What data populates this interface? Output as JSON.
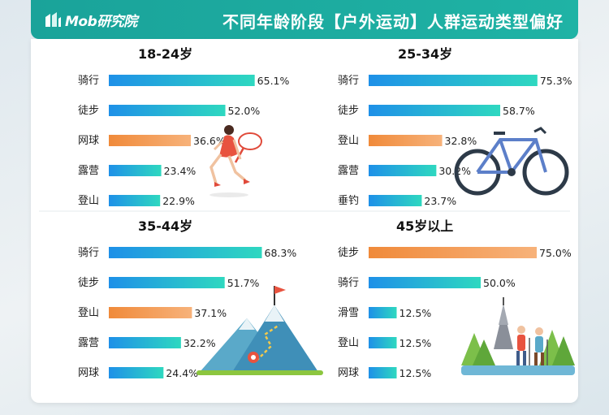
{
  "header": {
    "logo_text": "Mob研究院",
    "title": "不同年龄阶段【户外运动】人群运动类型偏好"
  },
  "colors": {
    "header": "#1aa39a",
    "bar_gradient_start": "#1e90e8",
    "bar_gradient_end": "#2ed8c0",
    "bar_highlight_start": "#f08a3a",
    "bar_highlight_end": "#f7b27a"
  },
  "illustrations": [
    "tennis-player-icon",
    "bicycle-icon",
    "mountain-flag-icon",
    "hikers-temple-icon"
  ],
  "chart_data": [
    {
      "type": "bar",
      "orientation": "horizontal",
      "title": "18-24岁",
      "categories": [
        "骑行",
        "徒步",
        "网球",
        "露营",
        "登山"
      ],
      "values": [
        65.1,
        52.0,
        36.6,
        23.4,
        22.9
      ],
      "value_labels": [
        "65.1%",
        "52.0%",
        "36.6%",
        "23.4%",
        "22.9%"
      ],
      "highlight": [
        "网球"
      ],
      "unit": "%"
    },
    {
      "type": "bar",
      "orientation": "horizontal",
      "title": "25-34岁",
      "categories": [
        "骑行",
        "徒步",
        "登山",
        "露营",
        "垂钓"
      ],
      "values": [
        75.3,
        58.7,
        32.8,
        30.2,
        23.7
      ],
      "value_labels": [
        "75.3%",
        "58.7%",
        "32.8%",
        "30.2%",
        "23.7%"
      ],
      "highlight": [
        "登山"
      ],
      "unit": "%"
    },
    {
      "type": "bar",
      "orientation": "horizontal",
      "title": "35-44岁",
      "categories": [
        "骑行",
        "徒步",
        "登山",
        "露营",
        "网球"
      ],
      "values": [
        68.3,
        51.7,
        37.1,
        32.2,
        24.4
      ],
      "value_labels": [
        "68.3%",
        "51.7%",
        "37.1%",
        "32.2%",
        "24.4%"
      ],
      "highlight": [
        "登山"
      ],
      "unit": "%"
    },
    {
      "type": "bar",
      "orientation": "horizontal",
      "title": "45岁以上",
      "categories": [
        "徒步",
        "骑行",
        "滑雪",
        "登山",
        "网球"
      ],
      "values": [
        75.0,
        50.0,
        12.5,
        12.5,
        12.5
      ],
      "value_labels": [
        "75.0%",
        "50.0%",
        "12.5%",
        "12.5%",
        "12.5%"
      ],
      "highlight": [
        "徒步"
      ],
      "unit": "%"
    }
  ]
}
